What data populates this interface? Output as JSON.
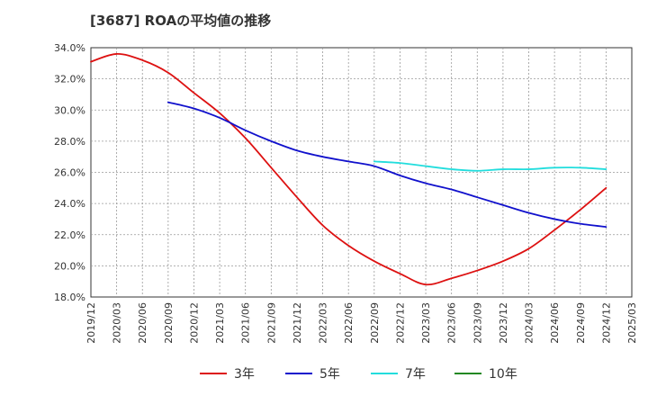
{
  "chart_data": {
    "type": "line",
    "title": "[3687]  ROAの平均値の推移",
    "xlabel": "",
    "ylabel": "",
    "ylim": [
      18.0,
      34.0
    ],
    "y_ticks": [
      "18.0%",
      "20.0%",
      "22.0%",
      "24.0%",
      "26.0%",
      "28.0%",
      "30.0%",
      "32.0%",
      "34.0%"
    ],
    "x_ticks": [
      "2019/12",
      "2020/03",
      "2020/06",
      "2020/09",
      "2020/12",
      "2021/03",
      "2021/06",
      "2021/09",
      "2021/12",
      "2022/03",
      "2022/06",
      "2022/09",
      "2022/12",
      "2023/03",
      "2023/06",
      "2023/09",
      "2023/12",
      "2024/03",
      "2024/06",
      "2024/09",
      "2024/12",
      "2025/03"
    ],
    "grid": true,
    "legend_position": "bottom",
    "series": [
      {
        "name": "3年",
        "color": "#dd1111",
        "x": [
          "2019/12",
          "2020/03",
          "2020/06",
          "2020/09",
          "2020/12",
          "2021/03",
          "2021/06",
          "2021/09",
          "2021/12",
          "2022/03",
          "2022/06",
          "2022/09",
          "2022/12",
          "2023/03",
          "2023/06",
          "2023/09",
          "2023/12",
          "2024/03",
          "2024/06",
          "2024/09",
          "2024/12"
        ],
        "values": [
          33.1,
          33.6,
          33.2,
          32.4,
          31.1,
          29.8,
          28.2,
          26.3,
          24.4,
          22.6,
          21.3,
          20.3,
          19.5,
          18.8,
          19.2,
          19.7,
          20.3,
          21.1,
          22.3,
          23.6,
          25.0
        ]
      },
      {
        "name": "5年",
        "color": "#1111cc",
        "x": [
          "2020/09",
          "2020/12",
          "2021/03",
          "2021/06",
          "2021/09",
          "2021/12",
          "2022/03",
          "2022/06",
          "2022/09",
          "2022/12",
          "2023/03",
          "2023/06",
          "2023/09",
          "2023/12",
          "2024/03",
          "2024/06",
          "2024/09",
          "2024/12"
        ],
        "values": [
          30.5,
          30.1,
          29.5,
          28.7,
          28.0,
          27.4,
          27.0,
          26.7,
          26.4,
          25.8,
          25.3,
          24.9,
          24.4,
          23.9,
          23.4,
          23.0,
          22.7,
          22.5
        ]
      },
      {
        "name": "7年",
        "color": "#22dddd",
        "x": [
          "2022/09",
          "2022/12",
          "2023/03",
          "2023/06",
          "2023/09",
          "2023/12",
          "2024/03",
          "2024/06",
          "2024/09",
          "2024/12"
        ],
        "values": [
          26.7,
          26.6,
          26.4,
          26.2,
          26.1,
          26.2,
          26.2,
          26.3,
          26.3,
          26.2
        ]
      },
      {
        "name": "10年",
        "color": "#228822",
        "x": [],
        "values": []
      }
    ]
  }
}
